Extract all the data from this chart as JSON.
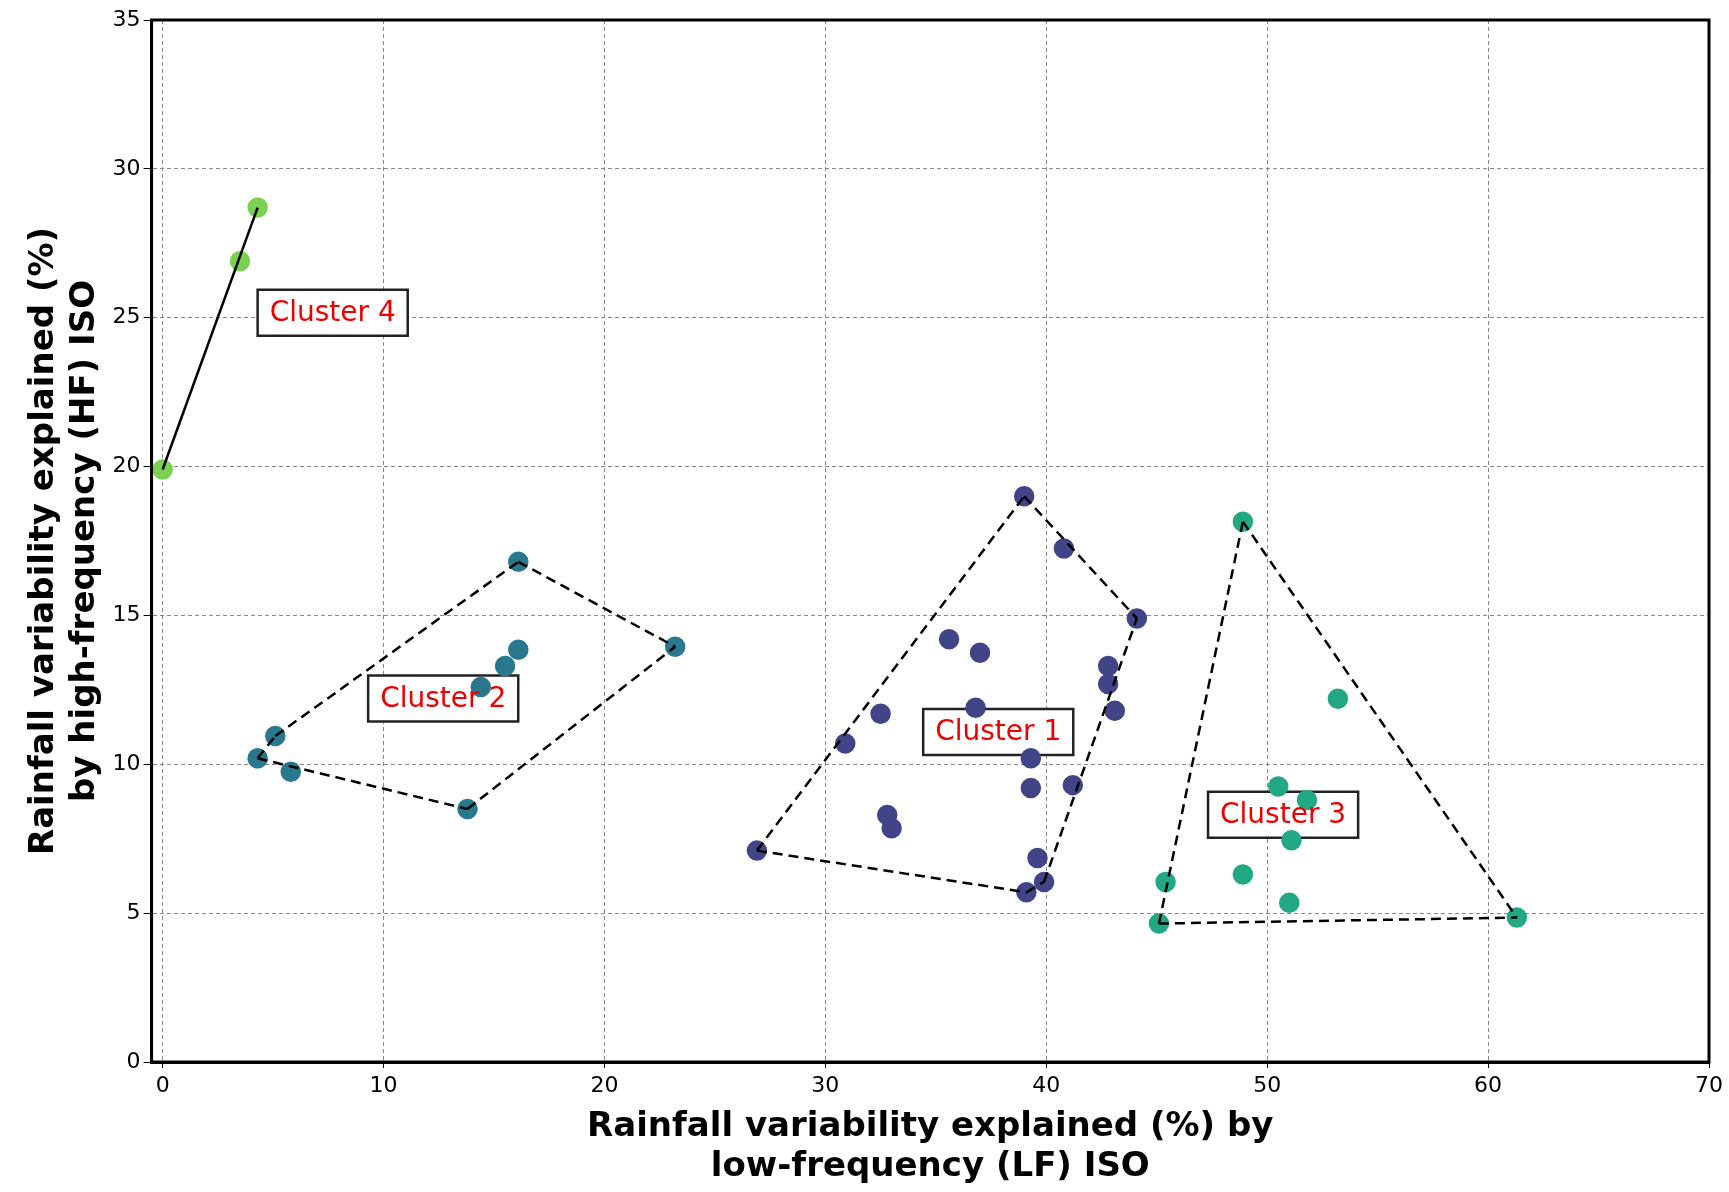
{
  "chart_data": {
    "type": "scatter",
    "xlabel": "Rainfall variability explained (%) by\nlow-frequency (LF) ISO",
    "ylabel": "Rainfall variability explained (%)\nby high-frequency (HF) ISO",
    "xlim": [
      -0.5,
      70
    ],
    "xticks": [
      0,
      10,
      20,
      30,
      40,
      50,
      60,
      70
    ],
    "ylim": [
      0,
      35
    ],
    "yticks": [
      0,
      5,
      10,
      15,
      20,
      25,
      30,
      35
    ],
    "grid": true,
    "legend": false,
    "marker": "circle",
    "series": [
      {
        "color": "#7ad151",
        "x": [
          0,
          3.5,
          4.3
        ],
        "values": [
          19.9,
          26.9,
          28.7
        ]
      },
      {
        "color": "#2a788e",
        "x": [
          4.3,
          5.1,
          5.8,
          13.8,
          16.1,
          23.2,
          16.1,
          15.5,
          14.4
        ],
        "values": [
          10.2,
          10.95,
          9.75,
          8.5,
          16.8,
          13.95,
          13.85,
          13.3,
          12.6
        ]
      },
      {
        "color": "#414487",
        "x": [
          26.9,
          30.9,
          32.5,
          32.8,
          33.0,
          35.6,
          37.0,
          36.8,
          39.0,
          40.8,
          44.1,
          42.8,
          42.8,
          43.1,
          39.3,
          39.3,
          41.2,
          39.6,
          39.1,
          39.9
        ],
        "values": [
          7.1,
          10.7,
          11.7,
          8.3,
          7.85,
          14.2,
          13.75,
          11.9,
          19.0,
          17.25,
          14.9,
          13.3,
          12.7,
          11.8,
          10.2,
          9.2,
          9.3,
          6.85,
          5.7,
          6.05
        ]
      },
      {
        "color": "#22a884",
        "x": [
          45.1,
          45.4,
          48.9,
          48.9,
          50.5,
          51.8,
          51.1,
          51.0,
          53.2,
          61.3
        ],
        "values": [
          4.65,
          6.05,
          18.15,
          6.3,
          9.25,
          8.8,
          7.45,
          5.35,
          12.2,
          4.85
        ]
      },
      {
        "type": "line",
        "color": "#000000",
        "line_style": "solid",
        "marker": "none",
        "x": [
          0,
          4.3
        ],
        "values": [
          19.9,
          28.7
        ]
      },
      {
        "type": "line",
        "color": "#000000",
        "line_style": "dashed",
        "marker": "none",
        "x": [
          4.3,
          5.1
        ],
        "values": [
          10.2,
          10.95
        ]
      },
      {
        "type": "line",
        "color": "#000000",
        "line_style": "dashed",
        "marker": "none",
        "x": [
          5.1,
          16.1
        ],
        "values": [
          10.95,
          16.8
        ]
      },
      {
        "type": "line",
        "color": "#000000",
        "line_style": "dashed",
        "marker": "none",
        "x": [
          16.1,
          23.2
        ],
        "values": [
          16.8,
          13.95
        ]
      },
      {
        "type": "line",
        "color": "#000000",
        "line_style": "dashed",
        "marker": "none",
        "x": [
          13.8,
          23.2
        ],
        "values": [
          8.5,
          13.95
        ]
      },
      {
        "type": "line",
        "color": "#000000",
        "line_style": "dashed",
        "marker": "none",
        "x": [
          4.3,
          13.8
        ],
        "values": [
          10.2,
          8.5
        ]
      },
      {
        "type": "line",
        "color": "#000000",
        "line_style": "dashed",
        "marker": "none",
        "x": [
          26.9,
          39.0
        ],
        "values": [
          7.1,
          19.0
        ]
      },
      {
        "type": "line",
        "color": "#000000",
        "line_style": "dashed",
        "marker": "none",
        "x": [
          39.0,
          44.1
        ],
        "values": [
          19.0,
          14.9
        ]
      },
      {
        "type": "line",
        "color": "#000000",
        "line_style": "dashed",
        "marker": "none",
        "x": [
          39.9,
          44.1
        ],
        "values": [
          6.05,
          14.9
        ]
      },
      {
        "type": "line",
        "color": "#000000",
        "line_style": "dashed",
        "marker": "none",
        "x": [
          39.1,
          39.9
        ],
        "values": [
          5.7,
          6.05
        ]
      },
      {
        "type": "line",
        "color": "#000000",
        "line_style": "dashed",
        "marker": "none",
        "x": [
          26.9,
          39.1
        ],
        "values": [
          7.1,
          5.7
        ]
      },
      {
        "type": "line",
        "color": "#000000",
        "line_style": "dashed",
        "marker": "none",
        "x": [
          45.1,
          48.9
        ],
        "values": [
          4.65,
          18.15
        ]
      },
      {
        "type": "line",
        "color": "#000000",
        "line_style": "dashed",
        "marker": "none",
        "x": [
          48.9,
          61.3
        ],
        "values": [
          18.15,
          4.85
        ]
      },
      {
        "type": "line",
        "color": "#000000",
        "line_style": "dashed",
        "marker": "none",
        "x": [
          45.1,
          61.3
        ],
        "values": [
          4.65,
          4.85
        ]
      }
    ],
    "annotations": [
      "Cluster 4",
      "Cluster 2",
      "Cluster 1",
      "Cluster 3"
    ]
  }
}
